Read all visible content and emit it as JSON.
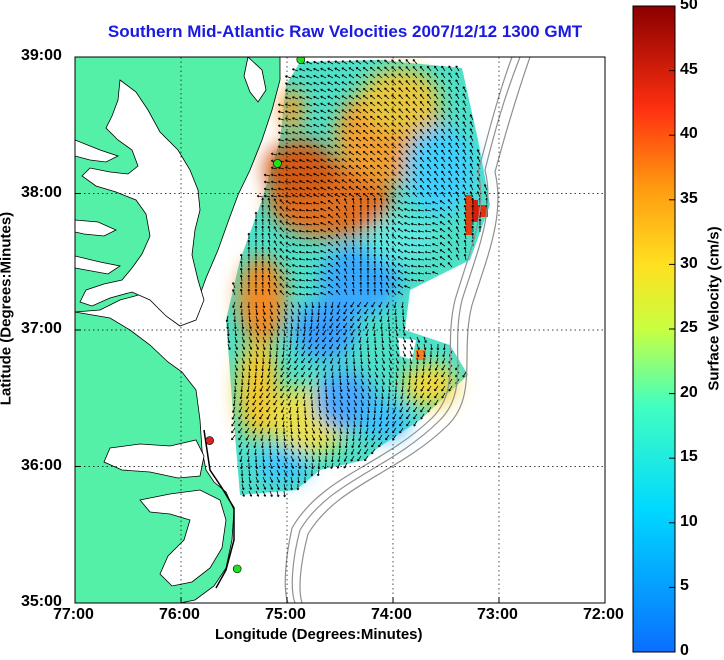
{
  "title": "Southern Mid-Atlantic Raw Velocities 2007/12/12 1300 GMT",
  "map": {
    "xlabel": "Longitude (Degrees:Minutes)",
    "ylabel": "Latitude (Degrees:Minutes)",
    "lon_ticks": [
      "77:00",
      "76:00",
      "75:00",
      "74:00",
      "73:00",
      "72:00"
    ],
    "lat_ticks": [
      "39:00",
      "38:00",
      "37:00",
      "36:00",
      "35:00"
    ],
    "lon_range": [
      -77,
      -72
    ],
    "lat_range": [
      35,
      39
    ],
    "grid": "dotted",
    "land_color": "#55f0a8",
    "ocean_color": "#ffffff",
    "bathymetry_color": "#909090",
    "station_colors": {
      "active": "#22dd22",
      "inactive": "#dd2222"
    }
  },
  "colorbar": {
    "label": "Surface Velocity (cm/s)",
    "ticks": [
      "0",
      "5",
      "10",
      "15",
      "20",
      "25",
      "30",
      "35",
      "40",
      "45",
      "50"
    ],
    "range": [
      0,
      50
    ]
  },
  "chart_data": {
    "type": "heatmap",
    "title": "Southern Mid-Atlantic Raw Velocities 2007/12/12 1300 GMT",
    "xlabel": "Longitude (Degrees:Minutes)",
    "ylabel": "Latitude (Degrees:Minutes)",
    "colorbar_label": "Surface Velocity (cm/s)",
    "xlim": [
      -77,
      -72
    ],
    "ylim": [
      35,
      39
    ],
    "clim": [
      0,
      50
    ],
    "stations": [
      {
        "lon": -74.87,
        "lat": 38.98,
        "status": "active"
      },
      {
        "lon": -75.09,
        "lat": 38.22,
        "status": "active"
      },
      {
        "lon": -75.73,
        "lat": 36.19,
        "status": "inactive"
      },
      {
        "lon": -75.47,
        "lat": 35.25,
        "status": "active"
      }
    ]
  }
}
